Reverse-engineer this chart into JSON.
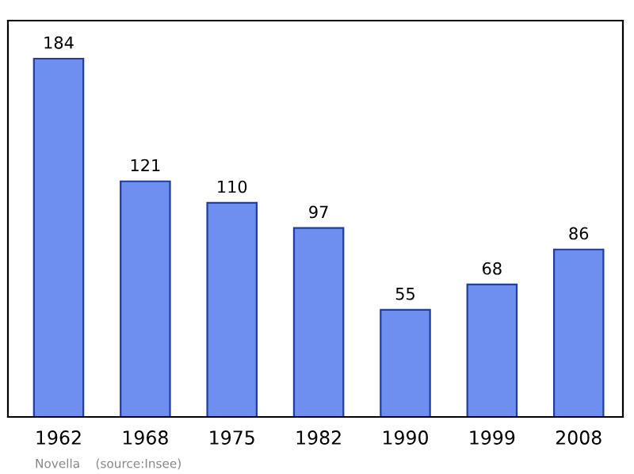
{
  "chart_data": {
    "type": "bar",
    "categories": [
      "1962",
      "1968",
      "1975",
      "1982",
      "1990",
      "1999",
      "2008"
    ],
    "values": [
      184,
      121,
      110,
      97,
      55,
      68,
      86
    ],
    "color": "#6f8ff0",
    "data_labels": true,
    "grid": false,
    "legend": false,
    "annotations": [
      "Novella    (source:Insee)"
    ]
  }
}
